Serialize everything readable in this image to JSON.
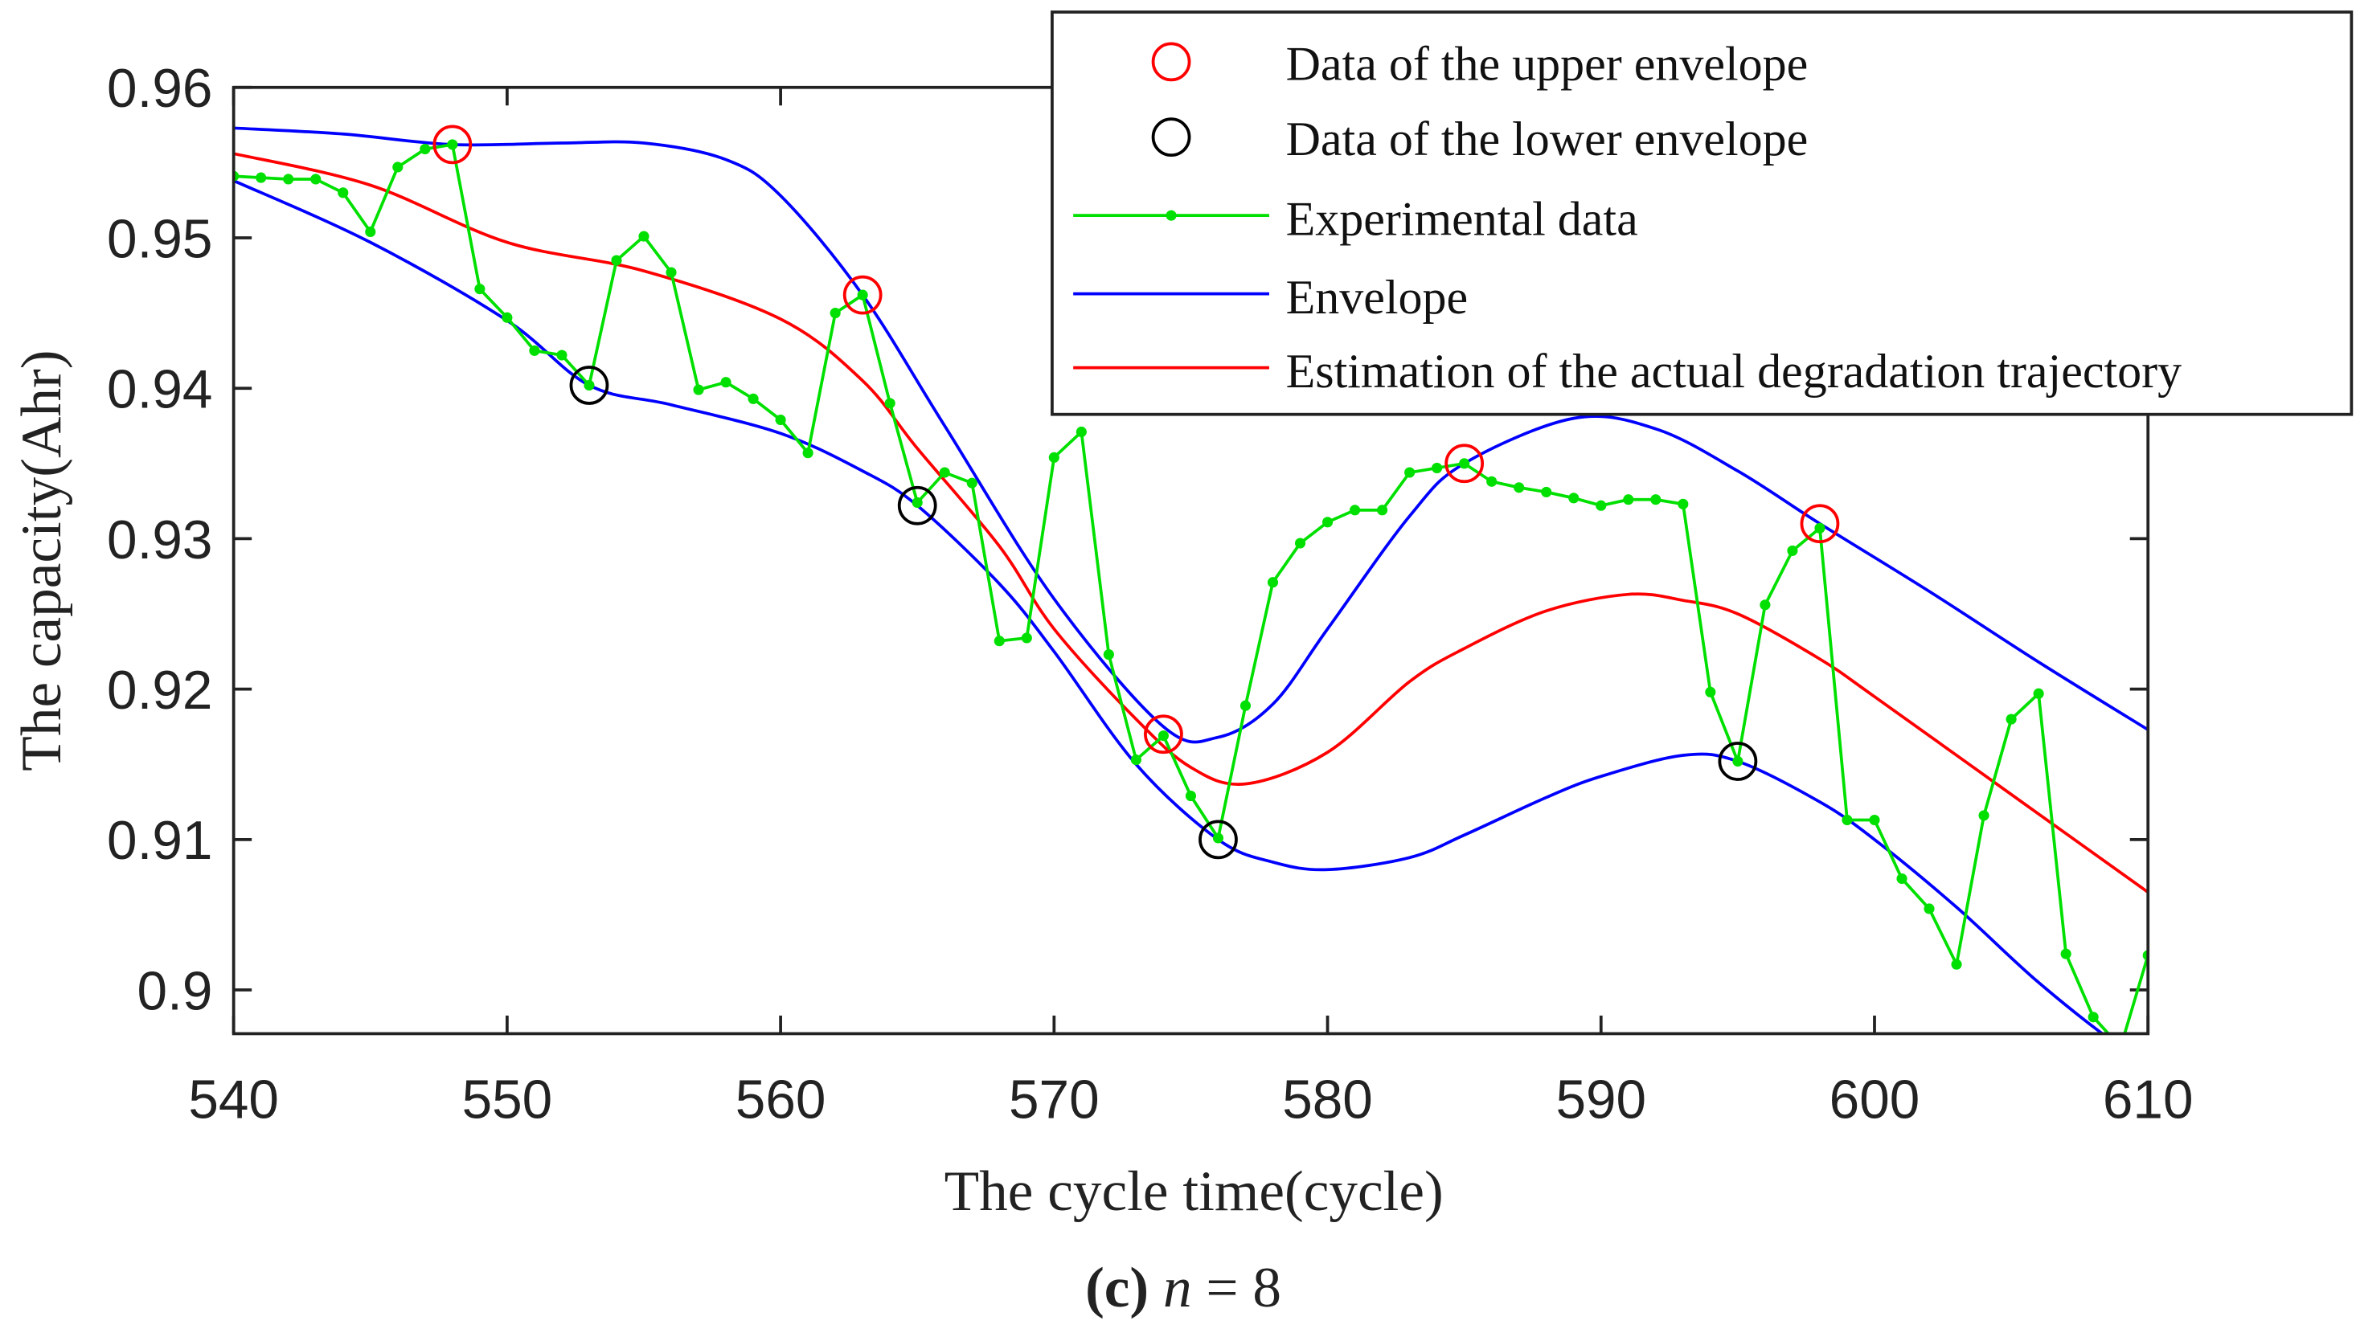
{
  "chart_data": {
    "type": "line",
    "xlabel": "The cycle time(cycle)",
    "ylabel": "The capacity(Ahr)",
    "caption": {
      "letter": "(c)",
      "var": "n",
      "rest": " = 8"
    },
    "xlim": [
      540,
      610
    ],
    "ylim": [
      0.897,
      0.96
    ],
    "xticks": [
      540,
      550,
      560,
      570,
      580,
      590,
      600,
      610
    ],
    "yticks": [
      0.9,
      0.91,
      0.92,
      0.93,
      0.94,
      0.95,
      0.96
    ],
    "ytick_labels": [
      "0.9",
      "0.91",
      "0.92",
      "0.93",
      "0.94",
      "0.95",
      "0.96"
    ],
    "legend_placement": "top-right",
    "colors": {
      "upper": "#ff0000",
      "lower": "#000000",
      "experimental": "#00e000",
      "envelope": "#0000ff",
      "estimate": "#ff0000"
    },
    "series": [
      {
        "name": "Data of the upper envelope",
        "kind": "markers",
        "x": [
          548,
          563,
          574,
          585,
          598
        ],
        "y": [
          0.9562,
          0.9462,
          0.917,
          0.935,
          0.931
        ]
      },
      {
        "name": "Data of the lower envelope",
        "kind": "markers",
        "x": [
          553,
          565,
          576,
          595
        ],
        "y": [
          0.9402,
          0.9322,
          0.91,
          0.9152
        ]
      },
      {
        "name": "Experimental data",
        "kind": "line-dots",
        "x": [
          540,
          541,
          542,
          543,
          544,
          545,
          546,
          547,
          548,
          549,
          550,
          551,
          552,
          553,
          554,
          555,
          556,
          557,
          558,
          559,
          560,
          561,
          562,
          563,
          564,
          565,
          566,
          567,
          568,
          569,
          570,
          571,
          572,
          573,
          574,
          575,
          576,
          577,
          578,
          579,
          580,
          581,
          582,
          583,
          584,
          585,
          586,
          587,
          588,
          589,
          590,
          591,
          592,
          593,
          594,
          595,
          596,
          597,
          598,
          599,
          600,
          601,
          602,
          603,
          604,
          605,
          606,
          607,
          608,
          609,
          610
        ],
        "y": [
          0.9541,
          0.954,
          0.9539,
          0.9539,
          0.953,
          0.9504,
          0.9547,
          0.9559,
          0.9562,
          0.9466,
          0.9447,
          0.9425,
          0.9422,
          0.9402,
          0.9485,
          0.9501,
          0.9477,
          0.9399,
          0.9404,
          0.9393,
          0.9379,
          0.9357,
          0.945,
          0.9462,
          0.939,
          0.9324,
          0.9344,
          0.9337,
          0.9232,
          0.9234,
          0.9354,
          0.9371,
          0.9223,
          0.9153,
          0.9169,
          0.9129,
          0.9101,
          0.9189,
          0.9271,
          0.9297,
          0.9311,
          0.9319,
          0.9319,
          0.9344,
          0.9347,
          0.935,
          0.9338,
          0.9334,
          0.9331,
          0.9327,
          0.9322,
          0.9326,
          0.9326,
          0.9323,
          0.9198,
          0.9152,
          0.9256,
          0.9292,
          0.9307,
          0.9113,
          0.9113,
          0.9074,
          0.9054,
          0.9017,
          0.9116,
          0.918,
          0.9197,
          0.9024,
          0.8982,
          0.8962,
          0.9023
        ]
      },
      {
        "name": "Envelope",
        "kind": "curve",
        "x": [
          540,
          544,
          548,
          552,
          555,
          558,
          560,
          563,
          566,
          570,
          574,
          576,
          578,
          580,
          583,
          585,
          589,
          592,
          595,
          598,
          602,
          606,
          610
        ],
        "y": [
          0.9573,
          0.9569,
          0.9562,
          0.9563,
          0.9563,
          0.9552,
          0.9528,
          0.9462,
          0.9375,
          0.926,
          0.9175,
          0.9168,
          0.919,
          0.924,
          0.9315,
          0.935,
          0.938,
          0.9373,
          0.9345,
          0.931,
          0.9265,
          0.9218,
          0.9173
        ]
      },
      {
        "name": "Envelope",
        "kind": "curve",
        "legend": false,
        "x": [
          540,
          545,
          550,
          553,
          556,
          560,
          563,
          565,
          568,
          570,
          573,
          576,
          578,
          580,
          583,
          585,
          588,
          590,
          593,
          595,
          598,
          600,
          603,
          606,
          609,
          611
        ],
        "y": [
          0.9538,
          0.9497,
          0.9445,
          0.9402,
          0.9389,
          0.937,
          0.9345,
          0.9322,
          0.927,
          0.9225,
          0.915,
          0.91,
          0.9085,
          0.908,
          0.9088,
          0.9103,
          0.9128,
          0.9142,
          0.9156,
          0.9152,
          0.9125,
          0.91,
          0.9055,
          0.9005,
          0.8962,
          0.894
        ]
      },
      {
        "name": "Estimation of the actual degradation trajectory",
        "kind": "curve",
        "x": [
          540,
          545,
          550,
          555,
          560,
          563,
          565,
          568,
          570,
          573,
          575,
          577,
          580,
          583,
          585,
          588,
          591,
          593,
          595,
          598,
          600,
          605,
          610
        ],
        "y": [
          0.9556,
          0.9535,
          0.9497,
          0.9478,
          0.9446,
          0.9405,
          0.936,
          0.9295,
          0.924,
          0.918,
          0.9148,
          0.9137,
          0.9158,
          0.9205,
          0.9227,
          0.9252,
          0.9263,
          0.9259,
          0.925,
          0.922,
          0.9195,
          0.913,
          0.9065
        ]
      }
    ]
  }
}
